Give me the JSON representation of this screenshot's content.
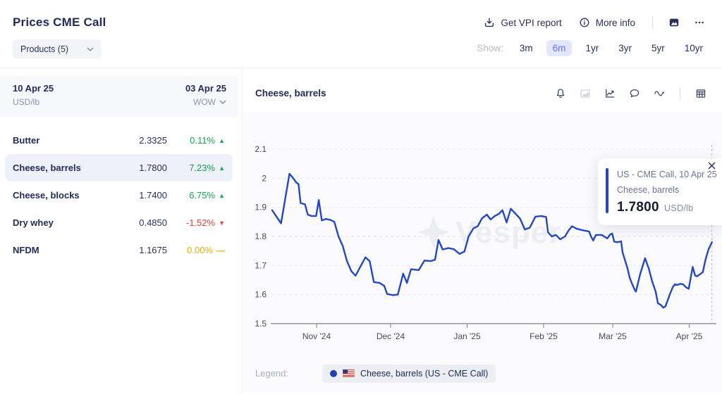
{
  "header": {
    "title": "Prices CME Call",
    "products_button": "Products (5)",
    "actions": {
      "report": "Get VPI report",
      "report_icon": "download-icon",
      "more_info": "More info",
      "more_info_icon": "info-icon",
      "extra_icons": [
        "image-icon",
        "ellipsis-icon"
      ]
    },
    "show": {
      "label": "Show:",
      "options": [
        "3m",
        "6m",
        "1yr",
        "3yr",
        "5yr",
        "10yr"
      ],
      "active": "6m"
    }
  },
  "price_table": {
    "col1": {
      "date": "10 Apr 25",
      "unit": "USD/lb"
    },
    "col2": {
      "date": "03 Apr 25",
      "mode": "WOW"
    },
    "change_icons": {
      "up": "▲",
      "down": "▼",
      "flat": "—"
    },
    "rows": [
      {
        "name": "Butter",
        "value": "2.3325",
        "change": "0.11%",
        "direction": "up",
        "selected": false
      },
      {
        "name": "Cheese, barrels",
        "value": "1.7800",
        "change": "7.23%",
        "direction": "up",
        "selected": true
      },
      {
        "name": "Cheese, blocks",
        "value": "1.7400",
        "change": "6.75%",
        "direction": "up",
        "selected": false
      },
      {
        "name": "Dry whey",
        "value": "0.4850",
        "change": "-1.52%",
        "direction": "down",
        "selected": false
      },
      {
        "name": "NFDM",
        "value": "1.1675",
        "change": "0.00%",
        "direction": "flat",
        "selected": false
      }
    ]
  },
  "chart": {
    "title": "Cheese, barrels",
    "toolbar_icons": [
      "bell-icon",
      "area-chart-icon",
      "line-chart-icon",
      "comment-icon",
      "wave-icon",
      "table-icon"
    ],
    "watermark": "Vesper",
    "tooltip": {
      "line1": "US - CME Call, 10 Apr 25",
      "line2": "Cheese, barrels",
      "value": "1.7800",
      "unit": "USD/lb"
    },
    "legend": {
      "label": "Legend:",
      "item": "Cheese, barrels (US - CME Call)",
      "flag": "us-flag-icon",
      "dot_color": "#1e3fae"
    }
  },
  "chart_data": {
    "type": "line",
    "title": "Cheese, barrels",
    "series_name": "Cheese, barrels (US - CME Call)",
    "unit": "USD/lb",
    "line_color": "#2347c5",
    "grid": true,
    "legend_position": "bottom",
    "ylim": [
      1.5,
      2.22
    ],
    "y_ticks": [
      "1.5",
      "1.6",
      "1.7",
      "1.8",
      "1.9",
      "2",
      "2.1"
    ],
    "x_ticks": [
      {
        "day": 17,
        "label": "Nov '24"
      },
      {
        "day": 47,
        "label": "Dec '24"
      },
      {
        "day": 78,
        "label": "Jan '25"
      },
      {
        "day": 109,
        "label": "Feb '25"
      },
      {
        "day": 137,
        "label": "Mar '25"
      },
      {
        "day": 168,
        "label": "Apr '25"
      }
    ],
    "x_days_span": [
      -1,
      177.2
    ],
    "last_value": 1.78,
    "points": [
      [
        -1,
        1.89
      ],
      [
        2.6,
        1.845
      ],
      [
        6,
        2.015
      ],
      [
        7.1,
        2.005
      ],
      [
        8.8,
        1.985
      ],
      [
        9.7,
        1.98
      ],
      [
        10.5,
        1.915
      ],
      [
        12.3,
        1.91
      ],
      [
        13.4,
        1.875
      ],
      [
        15.1,
        1.87
      ],
      [
        16.8,
        1.87
      ],
      [
        17.9,
        1.925
      ],
      [
        19.1,
        1.855
      ],
      [
        20.8,
        1.86
      ],
      [
        22.5,
        1.857
      ],
      [
        24.2,
        1.85
      ],
      [
        25.9,
        1.8
      ],
      [
        27.6,
        1.767
      ],
      [
        29.3,
        1.715
      ],
      [
        31.1,
        1.68
      ],
      [
        32.8,
        1.665
      ],
      [
        35,
        1.7
      ],
      [
        36.8,
        1.728
      ],
      [
        38.5,
        1.715
      ],
      [
        40.2,
        1.643
      ],
      [
        42.5,
        1.64
      ],
      [
        44.4,
        1.63
      ],
      [
        45.6,
        1.602
      ],
      [
        47.9,
        1.598
      ],
      [
        49.9,
        1.6
      ],
      [
        52.1,
        1.672
      ],
      [
        53.6,
        1.64
      ],
      [
        55.3,
        1.687
      ],
      [
        58.4,
        1.684
      ],
      [
        60.7,
        1.717
      ],
      [
        63.2,
        1.715
      ],
      [
        65,
        1.72
      ],
      [
        66.4,
        1.788
      ],
      [
        68.1,
        1.755
      ],
      [
        70.4,
        1.76
      ],
      [
        72.6,
        1.756
      ],
      [
        74.9,
        1.74
      ],
      [
        76.9,
        1.748
      ],
      [
        78.6,
        1.8
      ],
      [
        80.6,
        1.828
      ],
      [
        82.3,
        1.835
      ],
      [
        84,
        1.862
      ],
      [
        86,
        1.875
      ],
      [
        87.5,
        1.858
      ],
      [
        89.2,
        1.87
      ],
      [
        90.9,
        1.878
      ],
      [
        92.3,
        1.89
      ],
      [
        94,
        1.848
      ],
      [
        95.7,
        1.895
      ],
      [
        97.4,
        1.88
      ],
      [
        99.4,
        1.862
      ],
      [
        101.4,
        1.824
      ],
      [
        103.4,
        1.83
      ],
      [
        105.7,
        1.868
      ],
      [
        108,
        1.87
      ],
      [
        110,
        1.867
      ],
      [
        110.8,
        1.814
      ],
      [
        112.3,
        1.8
      ],
      [
        114,
        1.805
      ],
      [
        115.7,
        1.79
      ],
      [
        117.7,
        1.8
      ],
      [
        119.1,
        1.82
      ],
      [
        120.5,
        1.835
      ],
      [
        122.5,
        1.826
      ],
      [
        125.4,
        1.82
      ],
      [
        127.4,
        1.817
      ],
      [
        128.2,
        1.8
      ],
      [
        129.1,
        1.786
      ],
      [
        130.2,
        1.805
      ],
      [
        132.5,
        1.805
      ],
      [
        134.8,
        1.793
      ],
      [
        135.9,
        1.806
      ],
      [
        136.8,
        1.81
      ],
      [
        137.6,
        1.782
      ],
      [
        139,
        1.78
      ],
      [
        140.4,
        1.783
      ],
      [
        141,
        1.745
      ],
      [
        141.9,
        1.72
      ],
      [
        143,
        1.69
      ],
      [
        143.9,
        1.657
      ],
      [
        144.7,
        1.64
      ],
      [
        145.9,
        1.617
      ],
      [
        146.4,
        1.61
      ],
      [
        148.1,
        1.67
      ],
      [
        150.1,
        1.725
      ],
      [
        151.6,
        1.69
      ],
      [
        153,
        1.645
      ],
      [
        154.4,
        1.61
      ],
      [
        155.3,
        1.57
      ],
      [
        156.4,
        1.565
      ],
      [
        157.5,
        1.555
      ],
      [
        158.4,
        1.56
      ],
      [
        160.1,
        1.6
      ],
      [
        161.3,
        1.625
      ],
      [
        162.1,
        1.635
      ],
      [
        163.2,
        1.633
      ],
      [
        164.4,
        1.637
      ],
      [
        165.5,
        1.635
      ],
      [
        166.7,
        1.625
      ],
      [
        167.8,
        1.62
      ],
      [
        169.4,
        1.695
      ],
      [
        170.4,
        1.665
      ],
      [
        171.2,
        1.663
      ],
      [
        172.4,
        1.67
      ],
      [
        173.5,
        1.677
      ],
      [
        174.6,
        1.72
      ],
      [
        175.8,
        1.755
      ],
      [
        177.2,
        1.78
      ]
    ]
  },
  "colors": {
    "navy_text": "#232b57",
    "muted_text": "#8d93a9",
    "green": "#17a34f",
    "red": "#e63f38",
    "amber": "#e7ae06",
    "line_blue": "#2347c5",
    "active_pill_bg": "#e3e6fc",
    "active_pill_text": "#6570f3",
    "selected_row_bg": "#eef1f9",
    "watermark": "#edeef4"
  }
}
